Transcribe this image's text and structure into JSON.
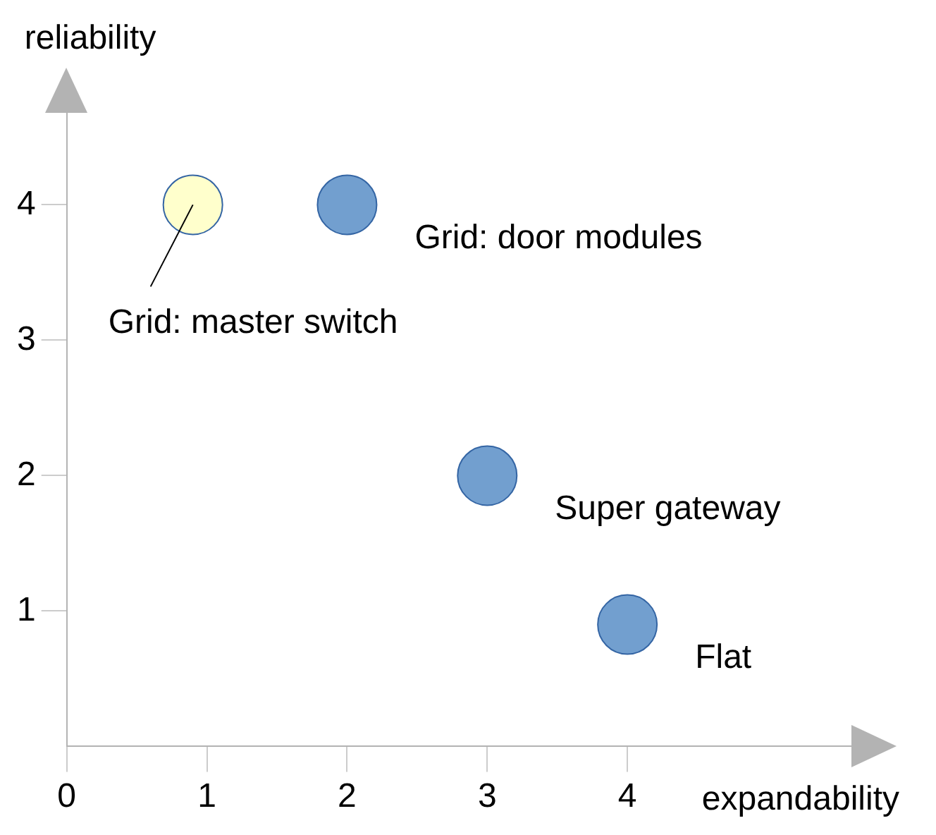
{
  "chart_data": {
    "type": "scatter",
    "xlabel": "expandability",
    "ylabel": "reliability",
    "x": [
      0.9,
      2,
      3,
      4
    ],
    "values": [
      4,
      4,
      2,
      0.9
    ],
    "colors": [
      "#ffffcc",
      "#729fcf",
      "#729fcf",
      "#729fcf"
    ],
    "xlim": [
      0,
      5.9
    ],
    "ylim": [
      0,
      4.7
    ],
    "xticks": [
      0,
      1,
      2,
      3,
      4
    ],
    "yticks": [
      1,
      2,
      3,
      4
    ],
    "marker": "circle",
    "grid": false,
    "legend": false,
    "annotations": [
      {
        "text": "Grid: master switch",
        "x": 0.9,
        "y": 4
      },
      {
        "text": "Grid: door modules",
        "x": 2,
        "y": 4
      },
      {
        "text": "Super gateway",
        "x": 3,
        "y": 2
      },
      {
        "text": "Flat",
        "x": 4,
        "y": 0.9
      }
    ]
  }
}
